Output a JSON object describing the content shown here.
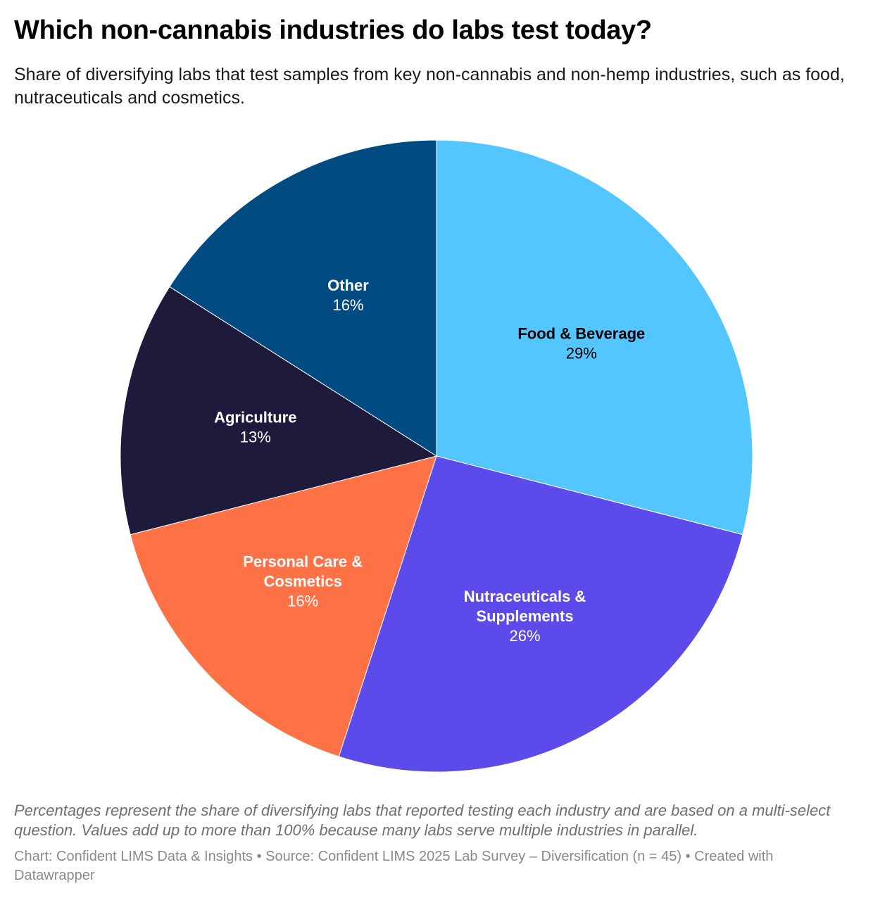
{
  "title": "Which non-cannabis industries do labs test today?",
  "subtitle": "Share of diversifying labs that test samples from key non-cannabis and non-hemp industries, such as food, nutraceuticals and cosmetics.",
  "notes": "Percentages represent the share of diversifying labs that reported testing each industry and are based on a multi-select question. Values add up to more than 100% because many labs serve multiple industries in parallel.",
  "credit": "Chart: Confident LIMS Data & Insights • Source: Confident LIMS 2025 Lab Survey – Diversification (n = 45) • Created with Datawrapper",
  "chart_data": {
    "type": "pie",
    "start": "12 o'clock, clockwise",
    "slices": [
      {
        "label": [
          "Food & Beverage"
        ],
        "value": 29,
        "display": "29%",
        "color": "#54c6ff",
        "text_color": "#000000"
      },
      {
        "label": [
          "Nutraceuticals &",
          "Supplements"
        ],
        "value": 26,
        "display": "26%",
        "color": "#5d4aea",
        "text_color": "#ffffff"
      },
      {
        "label": [
          "Personal Care &",
          "Cosmetics"
        ],
        "value": 16,
        "display": "16%",
        "color": "#ff7245",
        "text_color": "#ffffff"
      },
      {
        "label": [
          "Agriculture"
        ],
        "value": 13,
        "display": "13%",
        "color": "#1e1a3c",
        "text_color": "#ffffff"
      },
      {
        "label": [
          "Other"
        ],
        "value": 16,
        "display": "16%",
        "color": "#004b82",
        "text_color": "#ffffff"
      }
    ]
  }
}
